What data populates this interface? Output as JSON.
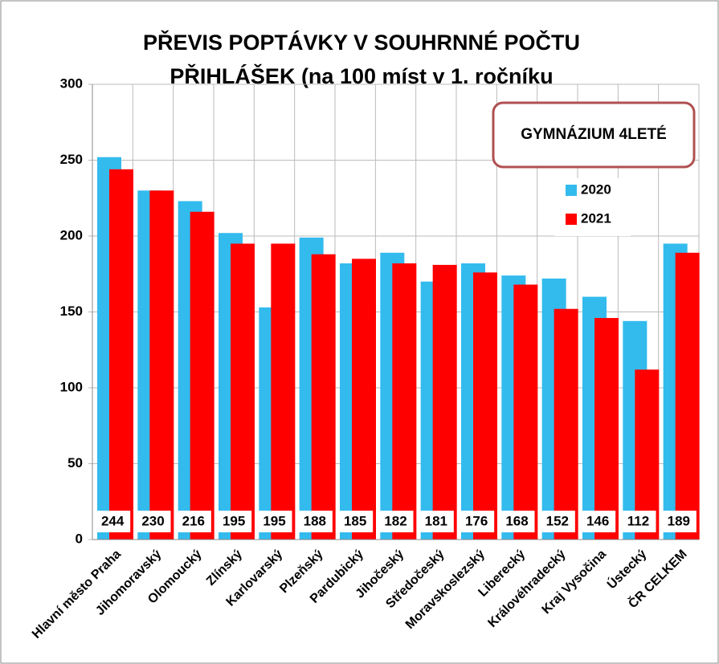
{
  "chart_data": {
    "type": "bar",
    "title": [
      "PŘEVIS POPTÁVKY V SOUHRNNÉ POČTU",
      "PŘIHLÁŠEK (na 100 míst v 1. ročníku"
    ],
    "annotation": "GYMNÁZIUM 4LETÉ",
    "categories": [
      "Hlavní město Praha",
      "Jihomoravský",
      "Olomoucký",
      "Zlínský",
      "Karlovarský",
      "Plzeňský",
      "Pardubický",
      "Jihočeský",
      "Středočeský",
      "Moravskoslezský",
      "Liberecký",
      "Královéhradecký",
      "Kraj Vysočina",
      "Ústecký",
      "ČR CELKEM"
    ],
    "series": [
      {
        "name": "2020",
        "color": "#33bbee",
        "values": [
          252,
          230,
          223,
          202,
          153,
          199,
          182,
          189,
          170,
          182,
          174,
          172,
          160,
          144,
          195
        ]
      },
      {
        "name": "2021",
        "color": "#ff0000",
        "values": [
          244,
          230,
          216,
          195,
          195,
          188,
          185,
          182,
          181,
          176,
          168,
          152,
          146,
          112,
          189
        ]
      }
    ],
    "ylim": [
      0,
      300
    ],
    "yticks": [
      0,
      50,
      100,
      150,
      200,
      250,
      300
    ],
    "grid": true,
    "legend": "upper right"
  }
}
